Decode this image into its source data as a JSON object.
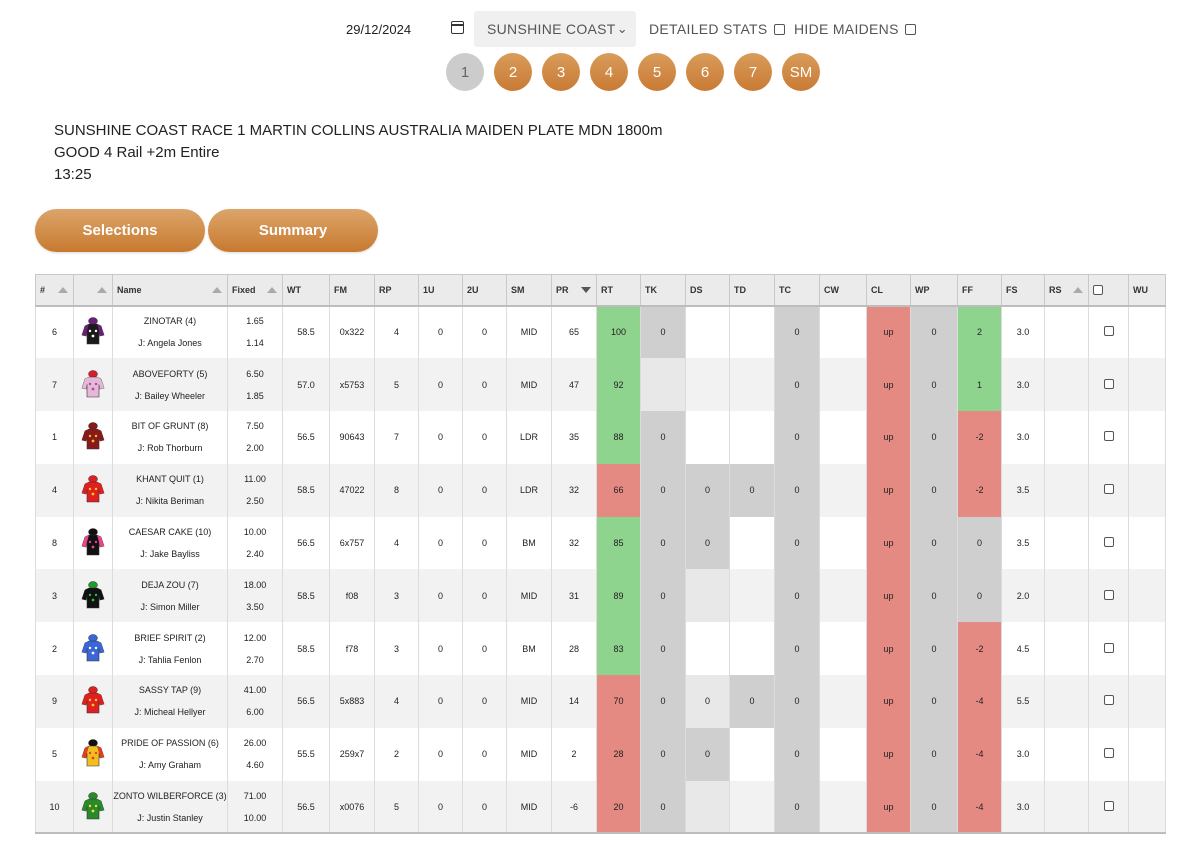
{
  "controls": {
    "date": "29/12/2024",
    "course": "SUNSHINE COAST",
    "detailed_stats_label": "DETAILED STATS",
    "hide_maidens_label": "HIDE MAIDENS"
  },
  "races": [
    "1",
    "2",
    "3",
    "4",
    "5",
    "6",
    "7",
    "SM"
  ],
  "race": {
    "line1": "SUNSHINE COAST RACE 1 MARTIN COLLINS AUSTRALIA MAIDEN PLATE MDN 1800m",
    "line2": "GOOD 4 Rail +2m Entire",
    "line3": "13:25"
  },
  "tabs": {
    "selections": "Selections",
    "summary": "Summary"
  },
  "columns": [
    "#",
    "",
    "Name",
    "Fixed",
    "WT",
    "FM",
    "RP",
    "1U",
    "2U",
    "SM",
    "PR",
    "RT",
    "TK",
    "DS",
    "TD",
    "TC",
    "CW",
    "CL",
    "WP",
    "FF",
    "FS",
    "RS",
    "",
    "WU"
  ],
  "colors": {
    "accent": "#c97a35",
    "green": "#8ed38e",
    "red": "#e48a82",
    "grey": "#cfcfcf"
  },
  "runners": [
    {
      "no": "6",
      "name": "ZINOTAR (4)",
      "jockey": "J: Angela Jones",
      "fixed1": "1.65",
      "fixed2": "1.14",
      "wt": "58.5",
      "fm": "0x322",
      "rp": "4",
      "u1": "0",
      "u2": "0",
      "sm": "MID",
      "pr": "65",
      "rt": "100",
      "tk": "0",
      "ds": "",
      "td": "",
      "tc": "0",
      "cw": "",
      "cl": "up",
      "wp": "0",
      "ff": "2",
      "fs": "3.0",
      "rs": "",
      "silk": {
        "body": "#1a1a1a",
        "sleeve": "#6b1f7a",
        "cap": "#6b1f7a",
        "accent": "#ffffff"
      },
      "styles": {
        "rt": "c-green",
        "tk": "c-grey",
        "tc": "c-grey",
        "cl": "c-red",
        "wp": "c-grey",
        "ff": "c-green"
      }
    },
    {
      "no": "7",
      "name": "ABOVEFORTY (5)",
      "jockey": "J: Bailey Wheeler",
      "fixed1": "6.50",
      "fixed2": "1.85",
      "wt": "57.0",
      "fm": "x5753",
      "rp": "5",
      "u1": "0",
      "u2": "0",
      "sm": "MID",
      "pr": "47",
      "rt": "92",
      "tk": "",
      "ds": "",
      "td": "",
      "tc": "0",
      "cw": "",
      "cl": "up",
      "wp": "0",
      "ff": "1",
      "fs": "3.0",
      "rs": "",
      "silk": {
        "body": "#e6b8d8",
        "sleeve": "#e6b8d8",
        "cap": "#d81e2c",
        "accent": "#b04a9a"
      },
      "styles": {
        "rt": "c-green",
        "tk": "c-pale",
        "tc": "c-grey",
        "cl": "c-red",
        "wp": "c-grey",
        "ff": "c-green"
      }
    },
    {
      "no": "1",
      "name": "BIT OF GRUNT (8)",
      "jockey": "J: Rob Thorburn",
      "fixed1": "7.50",
      "fixed2": "2.00",
      "wt": "56.5",
      "fm": "90643",
      "rp": "7",
      "u1": "0",
      "u2": "0",
      "sm": "LDR",
      "pr": "35",
      "rt": "88",
      "tk": "0",
      "ds": "",
      "td": "",
      "tc": "0",
      "cw": "",
      "cl": "up",
      "wp": "0",
      "ff": "-2",
      "fs": "3.0",
      "rs": "",
      "silk": {
        "body": "#8a1a1a",
        "sleeve": "#8a1a1a",
        "cap": "#8a1a1a",
        "accent": "#f0c020"
      },
      "styles": {
        "rt": "c-green",
        "tk": "c-grey",
        "tc": "c-grey",
        "cl": "c-red",
        "wp": "c-grey",
        "ff": "c-red"
      }
    },
    {
      "no": "4",
      "name": "KHANT QUIT (1)",
      "jockey": "J: Nikita Beriman",
      "fixed1": "11.00",
      "fixed2": "2.50",
      "wt": "58.5",
      "fm": "47022",
      "rp": "8",
      "u1": "0",
      "u2": "0",
      "sm": "LDR",
      "pr": "32",
      "rt": "66",
      "tk": "0",
      "ds": "0",
      "td": "0",
      "tc": "0",
      "cw": "",
      "cl": "up",
      "wp": "0",
      "ff": "-2",
      "fs": "3.5",
      "rs": "",
      "silk": {
        "body": "#e02020",
        "sleeve": "#e02020",
        "cap": "#e02020",
        "accent": "#f0d020"
      },
      "styles": {
        "rt": "c-red",
        "tk": "c-grey",
        "ds": "c-grey",
        "td": "c-grey",
        "tc": "c-grey",
        "cl": "c-red",
        "wp": "c-grey",
        "ff": "c-red"
      }
    },
    {
      "no": "8",
      "name": "CAESAR CAKE (10)",
      "jockey": "J: Jake Bayliss",
      "fixed1": "10.00",
      "fixed2": "2.40",
      "wt": "56.5",
      "fm": "6x757",
      "rp": "4",
      "u1": "0",
      "u2": "0",
      "sm": "BM",
      "pr": "32",
      "rt": "85",
      "tk": "0",
      "ds": "0",
      "td": "",
      "tc": "0",
      "cw": "",
      "cl": "up",
      "wp": "0",
      "ff": "0",
      "fs": "3.5",
      "rs": "",
      "silk": {
        "body": "#111111",
        "sleeve": "#e8458a",
        "cap": "#111111",
        "accent": "#e8458a"
      },
      "styles": {
        "rt": "c-green",
        "tk": "c-grey",
        "ds": "c-grey",
        "tc": "c-grey",
        "cl": "c-red",
        "wp": "c-grey",
        "ff": "c-grey"
      }
    },
    {
      "no": "3",
      "name": "DEJA ZOU (7)",
      "jockey": "J: Simon Miller",
      "fixed1": "18.00",
      "fixed2": "3.50",
      "wt": "58.5",
      "fm": "f08",
      "rp": "3",
      "u1": "0",
      "u2": "0",
      "sm": "MID",
      "pr": "31",
      "rt": "89",
      "tk": "0",
      "ds": "",
      "td": "",
      "tc": "0",
      "cw": "",
      "cl": "up",
      "wp": "0",
      "ff": "0",
      "fs": "2.0",
      "rs": "",
      "silk": {
        "body": "#111111",
        "sleeve": "#111111",
        "cap": "#1f9a2f",
        "accent": "#28c040"
      },
      "styles": {
        "rt": "c-green",
        "tk": "c-grey",
        "ds": "c-pale",
        "tc": "c-grey",
        "cl": "c-red",
        "wp": "c-grey",
        "ff": "c-grey"
      }
    },
    {
      "no": "2",
      "name": "BRIEF SPIRIT (2)",
      "jockey": "J: Tahlia Fenlon",
      "fixed1": "12.00",
      "fixed2": "2.70",
      "wt": "58.5",
      "fm": "f78",
      "rp": "3",
      "u1": "0",
      "u2": "0",
      "sm": "BM",
      "pr": "28",
      "rt": "83",
      "tk": "0",
      "ds": "",
      "td": "",
      "tc": "0",
      "cw": "",
      "cl": "up",
      "wp": "0",
      "ff": "-2",
      "fs": "4.5",
      "rs": "",
      "silk": {
        "body": "#3a66d8",
        "sleeve": "#3a66d8",
        "cap": "#3a66d8",
        "accent": "#ffffff"
      },
      "styles": {
        "rt": "c-green",
        "tk": "c-grey",
        "tc": "c-grey",
        "cl": "c-red",
        "wp": "c-grey",
        "ff": "c-red"
      }
    },
    {
      "no": "9",
      "name": "SASSY TAP (9)",
      "jockey": "J: Micheal Hellyer",
      "fixed1": "41.00",
      "fixed2": "6.00",
      "wt": "56.5",
      "fm": "5x883",
      "rp": "4",
      "u1": "0",
      "u2": "0",
      "sm": "MID",
      "pr": "14",
      "rt": "70",
      "tk": "0",
      "ds": "0",
      "td": "0",
      "tc": "0",
      "cw": "",
      "cl": "up",
      "wp": "0",
      "ff": "-4",
      "fs": "5.5",
      "rs": "",
      "silk": {
        "body": "#e02020",
        "sleeve": "#e02020",
        "cap": "#e02020",
        "accent": "#f0d020"
      },
      "styles": {
        "rt": "c-red",
        "tk": "c-grey",
        "ds": "c-pale",
        "td": "c-grey",
        "tc": "c-grey",
        "cl": "c-red",
        "wp": "c-grey",
        "ff": "c-red"
      }
    },
    {
      "no": "5",
      "name": "PRIDE OF PASSION (6)",
      "jockey": "J: Amy Graham",
      "fixed1": "26.00",
      "fixed2": "4.60",
      "wt": "55.5",
      "fm": "259x7",
      "rp": "2",
      "u1": "0",
      "u2": "0",
      "sm": "MID",
      "pr": "2",
      "rt": "28",
      "tk": "0",
      "ds": "0",
      "td": "",
      "tc": "0",
      "cw": "",
      "cl": "up",
      "wp": "0",
      "ff": "-4",
      "fs": "3.0",
      "rs": "",
      "silk": {
        "body": "#f0c020",
        "sleeve": "#e04020",
        "cap": "#111111",
        "accent": "#e04020"
      },
      "styles": {
        "rt": "c-red",
        "tk": "c-grey",
        "ds": "c-grey",
        "tc": "c-grey",
        "cl": "c-red",
        "wp": "c-grey",
        "ff": "c-red"
      }
    },
    {
      "no": "10",
      "name": "ZONTO WILBERFORCE (3)",
      "jockey": "J: Justin Stanley",
      "fixed1": "71.00",
      "fixed2": "10.00",
      "wt": "56.5",
      "fm": "x0076",
      "rp": "5",
      "u1": "0",
      "u2": "0",
      "sm": "MID",
      "pr": "-6",
      "rt": "20",
      "tk": "0",
      "ds": "",
      "td": "",
      "tc": "0",
      "cw": "",
      "cl": "up",
      "wp": "0",
      "ff": "-4",
      "fs": "3.0",
      "rs": "",
      "silk": {
        "body": "#2a8a2a",
        "sleeve": "#2a8a2a",
        "cap": "#2a8a2a",
        "accent": "#f0e040"
      },
      "styles": {
        "rt": "c-red",
        "tk": "c-grey",
        "ds": "c-pale",
        "tc": "c-grey",
        "cl": "c-red",
        "wp": "c-grey",
        "ff": "c-red"
      }
    }
  ]
}
